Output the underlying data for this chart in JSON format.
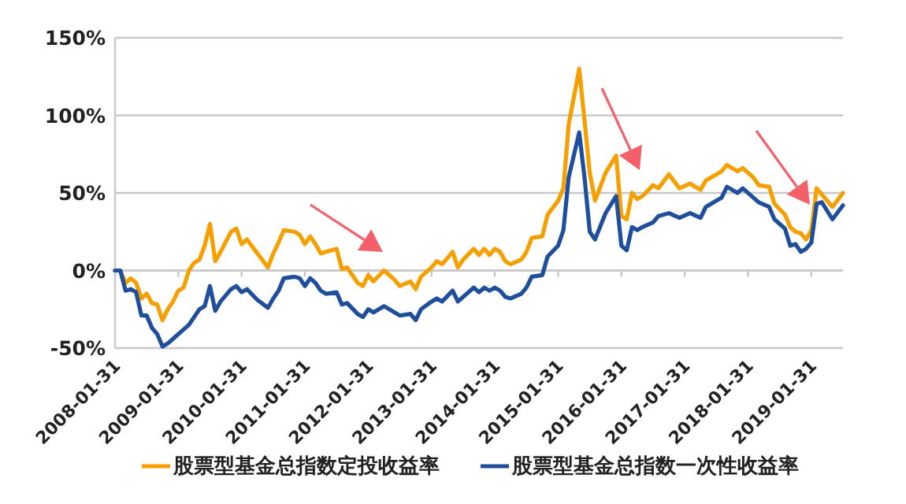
{
  "chart_data": {
    "type": "line",
    "x": [
      "2008-01",
      "2008-02",
      "2008-03",
      "2008-04",
      "2008-05",
      "2008-06",
      "2008-07",
      "2008-08",
      "2008-09",
      "2008-10",
      "2008-11",
      "2008-12",
      "2009-01",
      "2009-02",
      "2009-03",
      "2009-04",
      "2009-05",
      "2009-06",
      "2009-07",
      "2009-08",
      "2009-09",
      "2009-11",
      "2009-12",
      "2010-01",
      "2010-02",
      "2010-04",
      "2010-06",
      "2010-07",
      "2010-08",
      "2010-09",
      "2010-11",
      "2010-12",
      "2011-01",
      "2011-02",
      "2011-03",
      "2011-04",
      "2011-05",
      "2011-07",
      "2011-08",
      "2011-09",
      "2011-11",
      "2011-12",
      "2012-01",
      "2012-02",
      "2012-04",
      "2012-06",
      "2012-07",
      "2012-09",
      "2012-10",
      "2012-11",
      "2013-01",
      "2013-02",
      "2013-03",
      "2013-05",
      "2013-06",
      "2013-07",
      "2013-09",
      "2013-10",
      "2013-11",
      "2013-12",
      "2014-01",
      "2014-02",
      "2014-03",
      "2014-04",
      "2014-06",
      "2014-07",
      "2014-08",
      "2014-10",
      "2014-11",
      "2015-01",
      "2015-02",
      "2015-03",
      "2015-05",
      "2015-06",
      "2015-07",
      "2015-08",
      "2015-10",
      "2015-12",
      "2016-01",
      "2016-02",
      "2016-03",
      "2016-04",
      "2016-05",
      "2016-07",
      "2016-08",
      "2016-10",
      "2016-12",
      "2017-02",
      "2017-04",
      "2017-05",
      "2017-08",
      "2017-09",
      "2017-11",
      "2017-12",
      "2018-02",
      "2018-03",
      "2018-05",
      "2018-06",
      "2018-08",
      "2018-09",
      "2018-10",
      "2018-11",
      "2018-12",
      "2019-01",
      "2019-02",
      "2019-03",
      "2019-05",
      "2019-07"
    ],
    "series": [
      {
        "name": "股票型基金总指数定投收益率",
        "color": "#f5a000",
        "values": [
          0,
          0,
          -8,
          -5,
          -8,
          -18,
          -15,
          -21,
          -22,
          -32,
          -25,
          -20,
          -13,
          -11,
          0,
          5,
          7,
          16,
          30,
          6,
          12,
          25,
          27,
          17,
          20,
          11,
          2,
          11,
          18,
          26,
          25,
          23,
          17,
          22,
          17,
          11,
          12,
          14,
          1,
          2,
          -8,
          -10,
          -3,
          -7,
          0,
          -6,
          -10,
          -7,
          -12,
          -4,
          2,
          6,
          4,
          12,
          2,
          7,
          14,
          10,
          14,
          10,
          14,
          12,
          6,
          4,
          7,
          12,
          21,
          22,
          36,
          45,
          53,
          94,
          130,
          97,
          63,
          45,
          63,
          74,
          35,
          33,
          50,
          46,
          48,
          55,
          53,
          62,
          53,
          56,
          52,
          58,
          64,
          68,
          64,
          66,
          60,
          55,
          54,
          43,
          36,
          28,
          25,
          24,
          20,
          26,
          53,
          49,
          41,
          50
        ]
      },
      {
        "name": "股票型基金总指数一次性收益率",
        "color": "#1f4e9c",
        "values": [
          0,
          0,
          -13,
          -12,
          -14,
          -29,
          -29,
          -37,
          -41,
          -49,
          -47,
          -44,
          -41,
          -38,
          -35,
          -30,
          -25,
          -23,
          -10,
          -26,
          -20,
          -12,
          -10,
          -14,
          -12,
          -19,
          -24,
          -18,
          -13,
          -5,
          -4,
          -5,
          -10,
          -5,
          -8,
          -13,
          -15,
          -14,
          -22,
          -21,
          -28,
          -30,
          -25,
          -27,
          -23,
          -27,
          -29,
          -28,
          -32,
          -25,
          -20,
          -18,
          -20,
          -13,
          -20,
          -17,
          -11,
          -14,
          -11,
          -13,
          -11,
          -13,
          -17,
          -18,
          -15,
          -11,
          -4,
          -3,
          9,
          16,
          26,
          60,
          89,
          60,
          25,
          20,
          37,
          48,
          16,
          13,
          28,
          26,
          28,
          31,
          35,
          37,
          34,
          37,
          34,
          41,
          47,
          54,
          50,
          53,
          47,
          44,
          41,
          33,
          27,
          16,
          17,
          12,
          14,
          18,
          43,
          44,
          33,
          42
        ]
      }
    ],
    "xlim": [
      "2008-01",
      "2019-07"
    ],
    "xticks": [
      {
        "value": "2008-01",
        "label": "2008-01-31"
      },
      {
        "value": "2009-01",
        "label": "2009-01-31"
      },
      {
        "value": "2010-01",
        "label": "2010-01-31"
      },
      {
        "value": "2011-01",
        "label": "2011-01-31"
      },
      {
        "value": "2012-01",
        "label": "2012-01-31"
      },
      {
        "value": "2013-01",
        "label": "2013-01-31"
      },
      {
        "value": "2014-01",
        "label": "2014-01-31"
      },
      {
        "value": "2015-01",
        "label": "2015-01-31"
      },
      {
        "value": "2016-01",
        "label": "2016-01-31"
      },
      {
        "value": "2017-01",
        "label": "2017-01-31"
      },
      {
        "value": "2018-01",
        "label": "2018-01-31"
      },
      {
        "value": "2019-01",
        "label": "2019-01-31"
      }
    ],
    "ylim": [
      -50,
      150
    ],
    "yticks": [
      {
        "value": -50,
        "label": "-50%"
      },
      {
        "value": 0,
        "label": "0%"
      },
      {
        "value": 50,
        "label": "50%"
      },
      {
        "value": 100,
        "label": "100%"
      },
      {
        "value": 150,
        "label": "150%"
      }
    ],
    "grid": "y",
    "legend": "bottom",
    "marker": "none",
    "line_style": "solid"
  }
}
